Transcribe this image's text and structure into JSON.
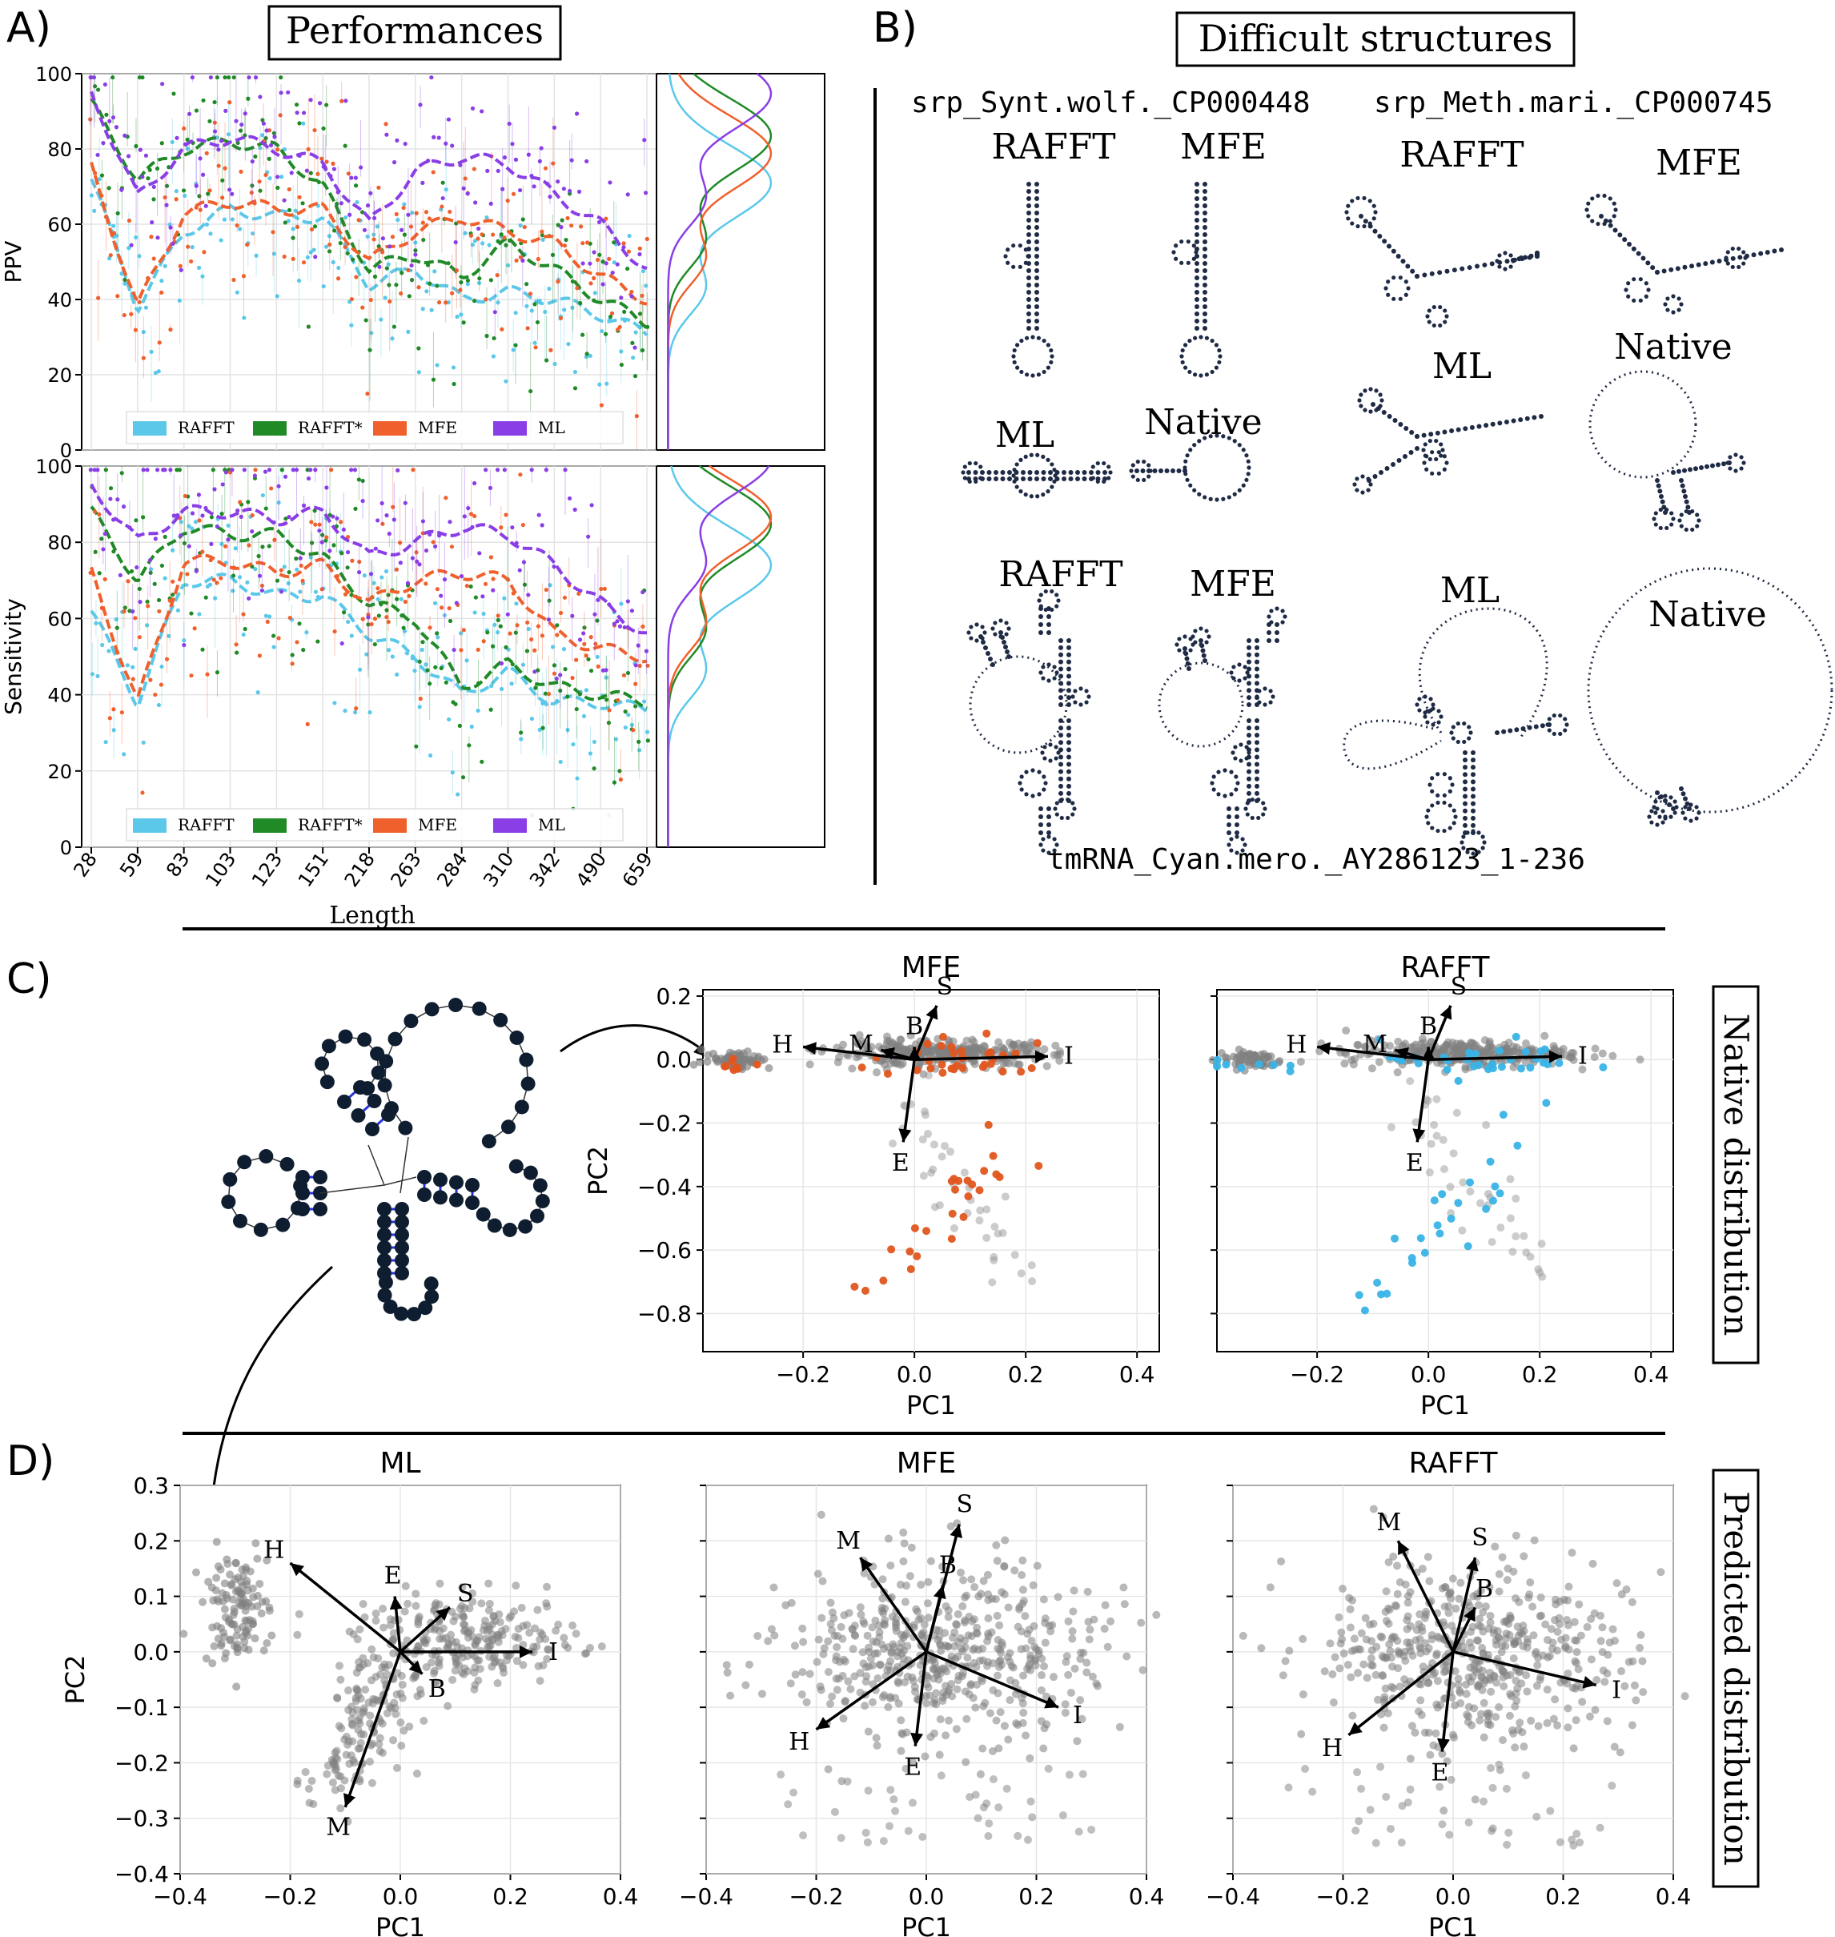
{
  "panels": {
    "a_label": "A)",
    "b_label": "B)",
    "c_label": "C)",
    "d_label": "D)"
  },
  "panel_a": {
    "title": "Performances",
    "x_tick_labels": [
      "28",
      "59",
      "83",
      "103",
      "123",
      "151",
      "218",
      "263",
      "284",
      "310",
      "342",
      "490",
      "659"
    ],
    "xlabel": "Length",
    "legend": [
      "RAFFT",
      "RAFFT*",
      "MFE",
      "ML"
    ],
    "colors": {
      "RAFFT": "#5bc8ea",
      "RAFFT*": "#1f8a26",
      "MFE": "#f0602c",
      "ML": "#8a3ee6"
    }
  },
  "panel_b": {
    "title": "Difficult structures",
    "examples": [
      {
        "name": "srp_Synt.wolf._CP000448",
        "labels": [
          "RAFFT",
          "MFE",
          "ML",
          "Native"
        ]
      },
      {
        "name": "srp_Meth.mari._CP000745",
        "labels": [
          "RAFFT",
          "MFE",
          "ML",
          "Native"
        ]
      },
      {
        "name": "tmRNA_Cyan.mero._AY286123_1-236",
        "labels": [
          "RAFFT",
          "MFE",
          "ML",
          "Native"
        ]
      }
    ]
  },
  "panel_c": {
    "side_label": "Native distribution",
    "subplots": [
      "MFE",
      "RAFFT"
    ],
    "xlabel": "PC1",
    "ylabel": "PC2",
    "x_ticks": [
      "−0.2",
      "0.0",
      "0.2",
      "0.4"
    ],
    "y_ticks": [
      "0.2",
      "0.0",
      "−0.2",
      "−0.4",
      "−0.6",
      "−0.8"
    ],
    "highlight_colors": {
      "MFE": "#e0561f",
      "RAFFT": "#39b3e6"
    }
  },
  "panel_d": {
    "side_label": "Predicted distribution",
    "subplots": [
      "ML",
      "MFE",
      "RAFFT"
    ],
    "xlabel": "PC1",
    "ylabel": "PC2",
    "x_ticks": [
      "−0.4",
      "−0.2",
      "0.0",
      "0.2",
      "0.4"
    ],
    "y_ticks": [
      "0.3",
      "0.2",
      "0.1",
      "0.0",
      "−0.1",
      "−0.2",
      "−0.3",
      "−0.4"
    ]
  },
  "chart_data": [
    {
      "type": "line",
      "title": "Performances",
      "xlabel": "Length",
      "ylabel": "PPV",
      "ylim": [
        0,
        100
      ],
      "x_tick_labels": [
        "28",
        "59",
        "83",
        "103",
        "123",
        "151",
        "218",
        "263",
        "284",
        "310",
        "342",
        "490",
        "659"
      ],
      "series": [
        {
          "name": "RAFFT",
          "values": [
            72,
            38,
            58,
            64,
            62,
            62,
            44,
            48,
            40,
            42,
            40,
            36,
            31
          ]
        },
        {
          "name": "RAFFT*",
          "values": [
            92,
            72,
            80,
            82,
            80,
            70,
            48,
            52,
            46,
            55,
            48,
            40,
            34
          ]
        },
        {
          "name": "MFE",
          "values": [
            75,
            38,
            63,
            66,
            64,
            64,
            50,
            58,
            62,
            58,
            55,
            46,
            40
          ]
        },
        {
          "name": "ML",
          "values": [
            95,
            67,
            80,
            83,
            80,
            76,
            60,
            74,
            78,
            76,
            68,
            60,
            48
          ]
        }
      ],
      "legend": "bottom"
    },
    {
      "type": "line",
      "xlabel": "Length",
      "ylabel": "Sensitivity",
      "ylim": [
        0,
        100
      ],
      "x_tick_labels": [
        "28",
        "59",
        "83",
        "103",
        "123",
        "151",
        "218",
        "263",
        "284",
        "310",
        "342",
        "490",
        "659"
      ],
      "series": [
        {
          "name": "RAFFT",
          "values": [
            62,
            38,
            70,
            70,
            66,
            66,
            56,
            50,
            40,
            46,
            38,
            38,
            36
          ]
        },
        {
          "name": "RAFFT*",
          "values": [
            88,
            70,
            84,
            82,
            82,
            76,
            64,
            60,
            42,
            48,
            42,
            40,
            38
          ]
        },
        {
          "name": "MFE",
          "values": [
            72,
            38,
            75,
            75,
            72,
            74,
            64,
            70,
            72,
            70,
            56,
            52,
            50
          ]
        },
        {
          "name": "ML",
          "values": [
            95,
            80,
            88,
            88,
            86,
            88,
            76,
            80,
            84,
            82,
            74,
            64,
            56
          ]
        }
      ],
      "legend": "bottom"
    },
    {
      "type": "scatter",
      "title": "MFE",
      "xlabel": "PC1",
      "ylabel": "PC2",
      "xlim": [
        -0.38,
        0.44
      ],
      "ylim": [
        -0.92,
        0.22
      ],
      "loadings": [
        {
          "name": "H",
          "x": -0.2,
          "y": 0.04
        },
        {
          "name": "M",
          "x": -0.06,
          "y": 0.03
        },
        {
          "name": "S",
          "x": 0.04,
          "y": 0.17
        },
        {
          "name": "B",
          "x": 0.0,
          "y": 0.04
        },
        {
          "name": "I",
          "x": 0.24,
          "y": 0.01
        },
        {
          "name": "E",
          "x": -0.02,
          "y": -0.26
        }
      ]
    },
    {
      "type": "scatter",
      "title": "RAFFT",
      "xlabel": "PC1",
      "ylabel": "PC2",
      "xlim": [
        -0.38,
        0.44
      ],
      "ylim": [
        -0.92,
        0.22
      ],
      "loadings": [
        {
          "name": "H",
          "x": -0.2,
          "y": 0.04
        },
        {
          "name": "M",
          "x": -0.06,
          "y": 0.03
        },
        {
          "name": "S",
          "x": 0.04,
          "y": 0.17
        },
        {
          "name": "B",
          "x": 0.0,
          "y": 0.04
        },
        {
          "name": "I",
          "x": 0.24,
          "y": 0.01
        },
        {
          "name": "E",
          "x": -0.02,
          "y": -0.26
        }
      ]
    },
    {
      "type": "scatter",
      "title": "ML",
      "xlabel": "PC1",
      "ylabel": "PC2",
      "xlim": [
        -0.4,
        0.4
      ],
      "ylim": [
        -0.4,
        0.3
      ],
      "loadings": [
        {
          "name": "H",
          "x": -0.2,
          "y": 0.16
        },
        {
          "name": "E",
          "x": -0.01,
          "y": 0.1
        },
        {
          "name": "S",
          "x": 0.09,
          "y": 0.08
        },
        {
          "name": "I",
          "x": 0.24,
          "y": 0.0
        },
        {
          "name": "B",
          "x": 0.04,
          "y": -0.04
        },
        {
          "name": "M",
          "x": -0.1,
          "y": -0.28
        }
      ]
    },
    {
      "type": "scatter",
      "title": "MFE",
      "xlabel": "PC1",
      "ylabel": "PC2",
      "xlim": [
        -0.4,
        0.4
      ],
      "ylim": [
        -0.4,
        0.3
      ],
      "loadings": [
        {
          "name": "M",
          "x": -0.12,
          "y": 0.17
        },
        {
          "name": "S",
          "x": 0.06,
          "y": 0.23
        },
        {
          "name": "B",
          "x": 0.03,
          "y": 0.12
        },
        {
          "name": "H",
          "x": -0.2,
          "y": -0.14
        },
        {
          "name": "I",
          "x": 0.24,
          "y": -0.1
        },
        {
          "name": "E",
          "x": -0.02,
          "y": -0.17
        }
      ]
    },
    {
      "type": "scatter",
      "title": "RAFFT",
      "xlabel": "PC1",
      "ylabel": "PC2",
      "xlim": [
        -0.4,
        0.4
      ],
      "ylim": [
        -0.4,
        0.3
      ],
      "loadings": [
        {
          "name": "M",
          "x": -0.1,
          "y": 0.2
        },
        {
          "name": "S",
          "x": 0.04,
          "y": 0.17
        },
        {
          "name": "B",
          "x": 0.04,
          "y": 0.08
        },
        {
          "name": "H",
          "x": -0.19,
          "y": -0.15
        },
        {
          "name": "I",
          "x": 0.26,
          "y": -0.06
        },
        {
          "name": "E",
          "x": -0.02,
          "y": -0.18
        }
      ]
    }
  ]
}
